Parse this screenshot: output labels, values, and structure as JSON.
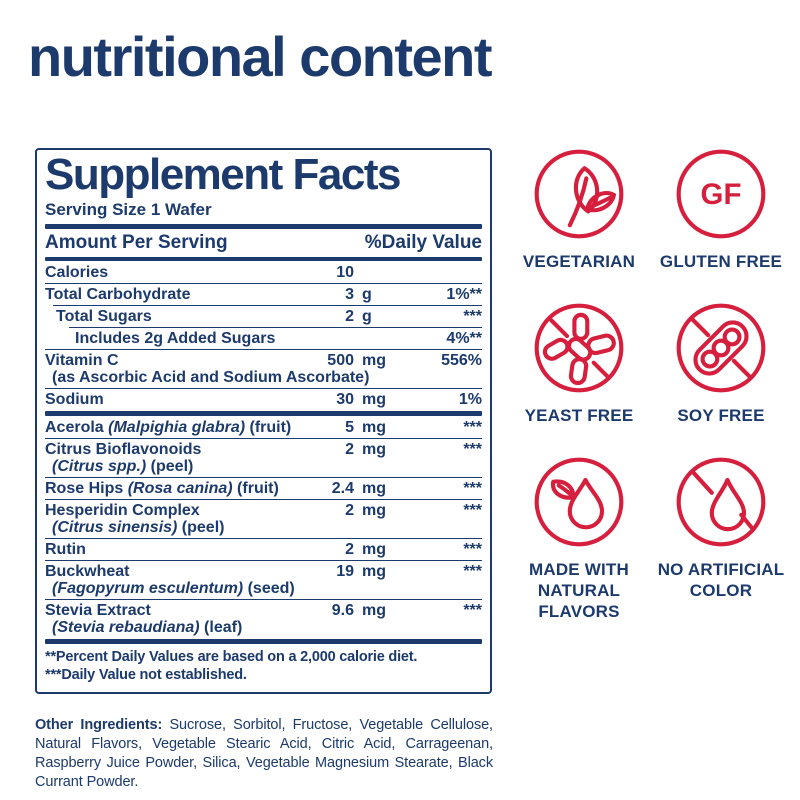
{
  "page": {
    "title": "nutritional content"
  },
  "colors": {
    "navy": "#1c3a6c",
    "red": "#d51f3d"
  },
  "panel": {
    "title": "Supplement Facts",
    "serving_size": "Serving Size 1 Wafer",
    "header": {
      "left": "Amount Per Serving",
      "right": "%Daily Value"
    },
    "rows_main": [
      {
        "name": [
          {
            "t": "Calories"
          }
        ],
        "amount_value": "10",
        "amount_unit": "",
        "dv": "",
        "indent": 0
      },
      {
        "name": [
          {
            "t": "Total Carbohydrate"
          }
        ],
        "amount_value": "3",
        "amount_unit": "g",
        "dv": "1%**",
        "indent": 0
      },
      {
        "name": [
          {
            "t": "Total Sugars"
          }
        ],
        "amount_value": "2",
        "amount_unit": "g",
        "dv": "***",
        "indent": 1
      },
      {
        "name": [
          {
            "t": "Includes 2g Added Sugars"
          }
        ],
        "amount_value": "",
        "amount_unit": "",
        "dv": "4%**",
        "indent": 2
      },
      {
        "name": [
          {
            "t": "Vitamin C"
          }
        ],
        "sub": [
          {
            "t": "(as Ascorbic Acid and Sodium Ascorbate)"
          }
        ],
        "amount_value": "500",
        "amount_unit": "mg",
        "dv": "556%",
        "indent": 0
      },
      {
        "name": [
          {
            "t": "Sodium"
          }
        ],
        "amount_value": "30",
        "amount_unit": "mg",
        "dv": "1%",
        "indent": 0
      }
    ],
    "rows_botanical": [
      {
        "name": [
          {
            "t": "Acerola "
          },
          {
            "t": "(Malpighia glabra)",
            "i": true
          },
          {
            "t": " (fruit)"
          }
        ],
        "amount_value": "5",
        "amount_unit": "mg",
        "dv": "***"
      },
      {
        "name": [
          {
            "t": "Citrus Bioflavonoids"
          }
        ],
        "sub": [
          {
            "t": "(Citrus spp.)",
            "i": true
          },
          {
            "t": " (peel)"
          }
        ],
        "amount_value": "2",
        "amount_unit": "mg",
        "dv": "***"
      },
      {
        "name": [
          {
            "t": "Rose Hips "
          },
          {
            "t": "(Rosa canina)",
            "i": true
          },
          {
            "t": " (fruit)"
          }
        ],
        "amount_value": "2.4",
        "amount_unit": "mg",
        "dv": "***"
      },
      {
        "name": [
          {
            "t": "Hesperidin Complex"
          }
        ],
        "sub": [
          {
            "t": "(Citrus sinensis)",
            "i": true
          },
          {
            "t": " (peel)"
          }
        ],
        "amount_value": "2",
        "amount_unit": "mg",
        "dv": "***"
      },
      {
        "name": [
          {
            "t": "Rutin"
          }
        ],
        "amount_value": "2",
        "amount_unit": "mg",
        "dv": "***"
      },
      {
        "name": [
          {
            "t": "Buckwheat"
          }
        ],
        "sub": [
          {
            "t": "(Fagopyrum esculentum)",
            "i": true
          },
          {
            "t": " (seed)"
          }
        ],
        "amount_value": "19",
        "amount_unit": "mg",
        "dv": "***"
      },
      {
        "name": [
          {
            "t": "Stevia Extract"
          }
        ],
        "sub": [
          {
            "t": "(Stevia rebaudiana)",
            "i": true
          },
          {
            "t": " (leaf)"
          }
        ],
        "amount_value": "9.6",
        "amount_unit": "mg",
        "dv": "***"
      }
    ],
    "footnotes": [
      "**Percent Daily Values are based on a 2,000 calorie diet.",
      "***Daily Value not established."
    ]
  },
  "other_ingredients": {
    "label": "Other Ingredients:",
    "text": " Sucrose, Sorbitol, Fructose, Vegetable Cellulose, Natural Flavors, Vegetable Stearic Acid, Citric Acid, Carrageenan, Raspberry Juice Powder, Silica, Vegetable Magnesium Stearate, Black Currant Powder."
  },
  "badges": [
    {
      "icon": "leaves-icon",
      "label": "VEGETARIAN"
    },
    {
      "icon": "gf-icon",
      "icon_text": "GF",
      "label": "GLUTEN FREE"
    },
    {
      "icon": "no-yeast-icon",
      "label": "YEAST FREE"
    },
    {
      "icon": "no-soy-icon",
      "label": "SOY FREE"
    },
    {
      "icon": "droplet-leaf-icon",
      "label": "MADE WITH NATURAL FLAVORS"
    },
    {
      "icon": "no-droplet-icon",
      "label": "NO ARTIFICIAL COLOR"
    }
  ]
}
